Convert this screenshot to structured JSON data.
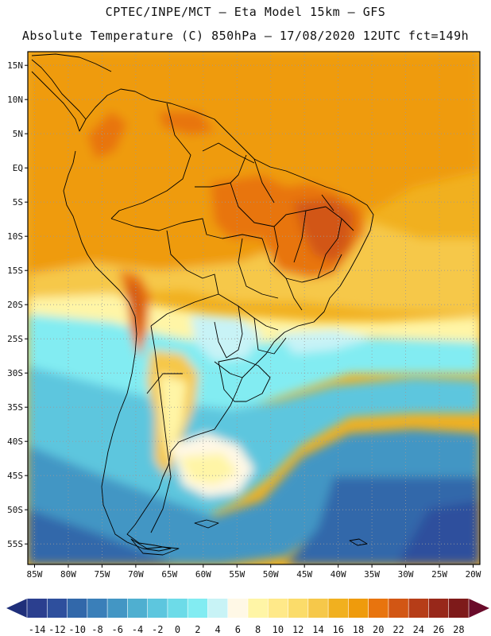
{
  "header": {
    "line1": "CPTEC/INPE/MCT –  Eta Model 15km – GFS",
    "line2": "Absolute Temperature (C) 850hPa – 17/08/2020 12UTC fct=149h"
  },
  "map": {
    "lon_range": [
      -86,
      -19
    ],
    "lat_range": [
      -58,
      17
    ],
    "lat_labels": [
      "15N",
      "10N",
      "5N",
      "EQ",
      "5S",
      "10S",
      "15S",
      "20S",
      "25S",
      "30S",
      "35S",
      "40S",
      "45S",
      "50S",
      "55S"
    ],
    "lon_labels": [
      "85W",
      "80W",
      "75W",
      "70W",
      "65W",
      "60W",
      "55W",
      "50W",
      "45W",
      "40W",
      "35W",
      "30W",
      "25W",
      "20W"
    ]
  },
  "colorbar": {
    "labels": [
      "-14",
      "-12",
      "-10",
      "-8",
      "-6",
      "-4",
      "-2",
      "0",
      "2",
      "4",
      "6",
      "8",
      "10",
      "12",
      "14",
      "16",
      "18",
      "20",
      "22",
      "24",
      "26",
      "28"
    ],
    "colors": [
      "#2b3f8f",
      "#2e4f9d",
      "#3268aa",
      "#3a7fb9",
      "#4396c4",
      "#4fafd0",
      "#5dc6de",
      "#6ddbe8",
      "#82ecf2",
      "#c8f3f6",
      "#fff8e6",
      "#fff5a6",
      "#ffe989",
      "#fbdc6a",
      "#f6c84a",
      "#f1b01f",
      "#ef9b0c",
      "#e8740e",
      "#d25614",
      "#b63d18",
      "#98281a",
      "#7e1a1a"
    ],
    "under_color": "#1f2f7a",
    "over_color": "#6a0b2a"
  }
}
